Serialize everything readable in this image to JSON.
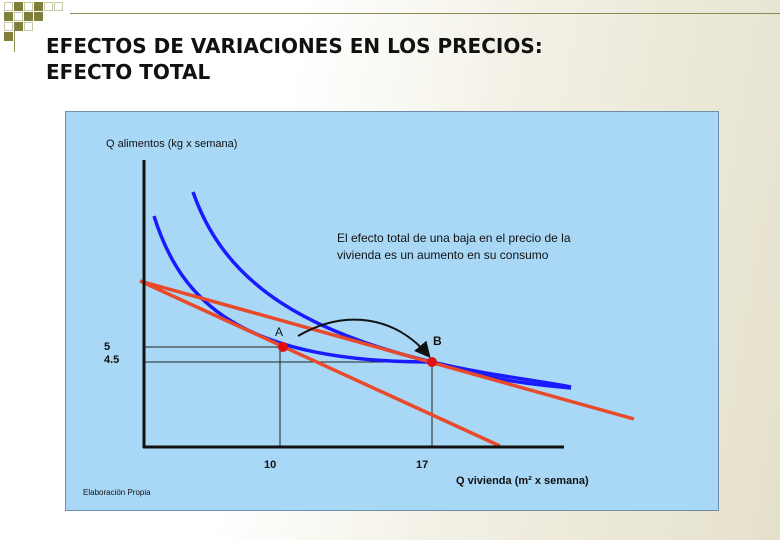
{
  "slide": {
    "title_line1": "EFECTOS DE VARIACIONES EN LOS PRECIOS:",
    "title_line2": "EFECTO TOTAL"
  },
  "graph": {
    "y_axis_label": "Q alimentos (kg x semana)",
    "x_axis_label": "Q vivienda (m² x semana)",
    "annotation_line1": "El efecto total de una baja en el precio de la",
    "annotation_line2": "vivienda es un aumento en su consumo",
    "point_a_label": "A",
    "point_b_label": "B",
    "y_tick_1": "5",
    "y_tick_2": "4.5",
    "x_tick_1": "10",
    "x_tick_2": "17",
    "source": "Elaboración Propia"
  },
  "colors": {
    "indifference_curve": "#1a1aff",
    "budget_line": "#e84a2a",
    "point": "#e01010",
    "panel": "#a9d8f7",
    "accent_square": "#7f7f3a"
  }
}
